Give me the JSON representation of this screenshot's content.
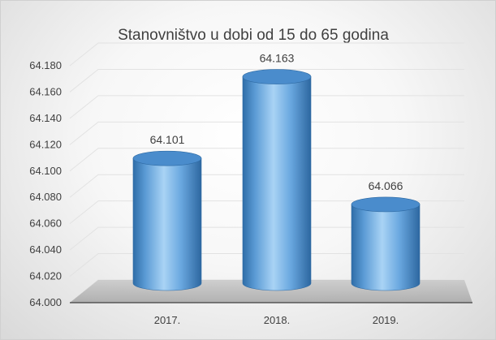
{
  "chart_data": {
    "type": "bar",
    "title": "Stanovništvo u dobi od 15 do 65 godina",
    "categories": [
      "2017.",
      "2018.",
      "2019."
    ],
    "values": [
      64.101,
      64.163,
      64.066
    ],
    "data_labels": [
      "64.101",
      "64.163",
      "64.066"
    ],
    "ylim": [
      64.0,
      64.18
    ],
    "yticks": [
      "64.000",
      "64.020",
      "64.040",
      "64.060",
      "64.080",
      "64.100",
      "64.120",
      "64.140",
      "64.160",
      "64.180"
    ],
    "xlabel": "",
    "ylabel": "",
    "grid": true,
    "style": "3d-cylinder",
    "bar_color": "#5b9bd5"
  }
}
